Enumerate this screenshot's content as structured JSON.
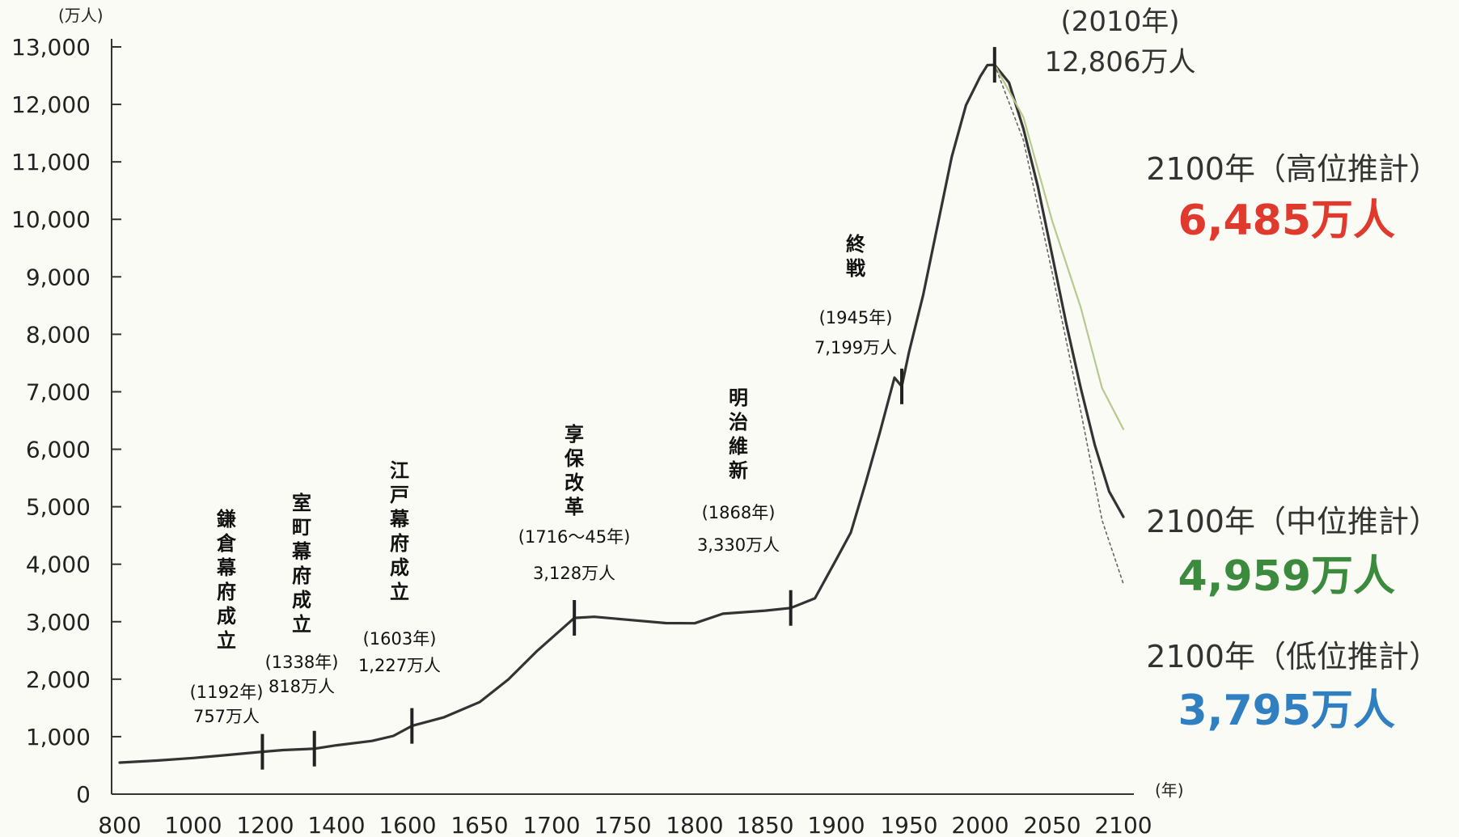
{
  "chart_data": {
    "type": "line",
    "y_unit": "(万人)",
    "x_unit": "(年)",
    "ylim": [
      0,
      13000
    ],
    "y_ticks": [
      "0",
      "1,000",
      "2,000",
      "3,000",
      "4,000",
      "5,000",
      "6,000",
      "7,000",
      "8,000",
      "9,000",
      "10,000",
      "11,000",
      "12,000",
      "13,000"
    ],
    "x_ticks": [
      "800",
      "1000",
      "1200",
      "1400",
      "1600",
      "1650",
      "1700",
      "1750",
      "1800",
      "1850",
      "1900",
      "1950",
      "2000",
      "2050",
      "2100"
    ],
    "grid": false,
    "series": [
      {
        "name": "",
        "color": "#333333",
        "style": "solid",
        "values": [
          [
            800,
            550
          ],
          [
            900,
            590
          ],
          [
            1000,
            640
          ],
          [
            1100,
            700
          ],
          [
            1192,
            757
          ],
          [
            1250,
            790
          ],
          [
            1338,
            818
          ],
          [
            1400,
            880
          ],
          [
            1500,
            960
          ],
          [
            1560,
            1050
          ],
          [
            1603,
            1227
          ],
          [
            1625,
            1380
          ],
          [
            1650,
            1650
          ],
          [
            1670,
            2050
          ],
          [
            1690,
            2550
          ],
          [
            1716,
            3128
          ],
          [
            1730,
            3150
          ],
          [
            1750,
            3110
          ],
          [
            1780,
            3050
          ],
          [
            1800,
            3050
          ],
          [
            1820,
            3220
          ],
          [
            1850,
            3280
          ],
          [
            1868,
            3330
          ],
          [
            1885,
            3500
          ],
          [
            1900,
            4180
          ],
          [
            1910,
            4650
          ],
          [
            1920,
            5500
          ],
          [
            1930,
            6400
          ],
          [
            1940,
            7350
          ],
          [
            1945,
            7199
          ],
          [
            1950,
            7800
          ],
          [
            1960,
            8800
          ],
          [
            1970,
            10000
          ],
          [
            1980,
            11200
          ],
          [
            1990,
            12100
          ],
          [
            2000,
            12600
          ],
          [
            2005,
            12800
          ],
          [
            2010,
            12806
          ],
          [
            2020,
            12500
          ],
          [
            2030,
            11700
          ],
          [
            2040,
            10700
          ],
          [
            2050,
            9500
          ],
          [
            2060,
            8300
          ],
          [
            2070,
            7200
          ],
          [
            2080,
            6200
          ],
          [
            2090,
            5400
          ],
          [
            2100,
            4959
          ]
        ]
      },
      {
        "name": "",
        "color": "#b7c98f",
        "style": "solid",
        "values": [
          [
            2010,
            12806
          ],
          [
            2030,
            11900
          ],
          [
            2050,
            10100
          ],
          [
            2070,
            8600
          ],
          [
            2085,
            7200
          ],
          [
            2100,
            6485
          ]
        ]
      },
      {
        "name": "",
        "color": "#666666",
        "style": "dotted",
        "values": [
          [
            2010,
            12806
          ],
          [
            2030,
            11500
          ],
          [
            2050,
            9200
          ],
          [
            2070,
            6800
          ],
          [
            2085,
            4900
          ],
          [
            2100,
            3795
          ]
        ]
      }
    ],
    "events": [
      {
        "year": 1192,
        "value": 757,
        "title": "鎌倉幕府成立",
        "line1": "(1192年)",
        "line2": "757万人"
      },
      {
        "year": 1338,
        "value": 818,
        "title": "室町幕府成立",
        "line1": "(1338年)",
        "line2": "818万人"
      },
      {
        "year": 1603,
        "value": 1227,
        "title": "江戸幕府成立",
        "line1": "(1603年)",
        "line2": "1,227万人"
      },
      {
        "year": 1716,
        "value": 3128,
        "title": "享保改革",
        "line1": "(1716～45年)",
        "line2": "3,128万人"
      },
      {
        "year": 1868,
        "value": 3330,
        "title": "明治維新",
        "line1": "(1868年)",
        "line2": "3,330万人"
      },
      {
        "year": 1945,
        "value": 7199,
        "title": "終戦",
        "line1": "(1945年)",
        "line2": "7,199万人"
      }
    ],
    "peak": {
      "year": 2010,
      "value": 12806,
      "line1": "(2010年)",
      "line2": "12,806万人"
    },
    "projections": [
      {
        "label": "2100年（高位推計）",
        "value_text": "6,485万人",
        "value": 6485,
        "color": "#e03a2f"
      },
      {
        "label": "2100年（中位推計）",
        "value_text": "4,959万人",
        "value": 4959,
        "color": "#3b8a3e"
      },
      {
        "label": "2100年（低位推計）",
        "value_text": "3,795万人",
        "value": 3795,
        "color": "#2f7fc1"
      }
    ]
  }
}
